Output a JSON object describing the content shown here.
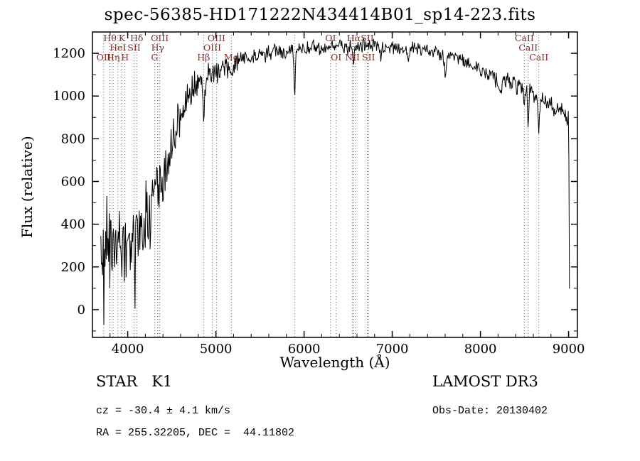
{
  "chart_data": {
    "type": "line",
    "title": "spec-56385-HD171222N434414B01_sp14-223.fits",
    "xlabel": "Wavelength (Å)",
    "ylabel": "Flux (relative)",
    "xlim": [
      3600,
      9100
    ],
    "ylim": [
      -130,
      1300
    ],
    "xticks": [
      4000,
      5000,
      6000,
      7000,
      8000,
      9000
    ],
    "yticks": [
      0,
      200,
      400,
      600,
      800,
      1000,
      1200
    ],
    "x_minor_step": 200,
    "y_minor_step": 100,
    "grid": false,
    "line_color": "#000000",
    "marker_line_color": "#9a4a44",
    "marker_label_color": "#7e2b26",
    "spectrum_anchors": [
      [
        3695,
        300
      ],
      [
        3710,
        200
      ],
      [
        3730,
        330
      ],
      [
        3750,
        260
      ],
      [
        3770,
        340
      ],
      [
        3790,
        280
      ],
      [
        3810,
        330
      ],
      [
        3830,
        260
      ],
      [
        3850,
        310
      ],
      [
        3870,
        280
      ],
      [
        3890,
        330
      ],
      [
        3910,
        300
      ],
      [
        3930,
        260
      ],
      [
        3950,
        330
      ],
      [
        3970,
        290
      ],
      [
        4000,
        340
      ],
      [
        4030,
        300
      ],
      [
        4060,
        350
      ],
      [
        4100,
        380
      ],
      [
        4150,
        360
      ],
      [
        4200,
        430
      ],
      [
        4250,
        480
      ],
      [
        4290,
        560
      ],
      [
        4320,
        660
      ],
      [
        4350,
        600
      ],
      [
        4380,
        580
      ],
      [
        4420,
        620
      ],
      [
        4460,
        700
      ],
      [
        4500,
        780
      ],
      [
        4550,
        850
      ],
      [
        4600,
        900
      ],
      [
        4650,
        950
      ],
      [
        4700,
        1000
      ],
      [
        4750,
        1040
      ],
      [
        4800,
        1060
      ],
      [
        4860,
        1030
      ],
      [
        4900,
        1090
      ],
      [
        4950,
        1100
      ],
      [
        5000,
        1110
      ],
      [
        5050,
        1130
      ],
      [
        5100,
        1140
      ],
      [
        5200,
        1150
      ],
      [
        5300,
        1170
      ],
      [
        5400,
        1180
      ],
      [
        5500,
        1190
      ],
      [
        5600,
        1200
      ],
      [
        5700,
        1210
      ],
      [
        5800,
        1200
      ],
      [
        5900,
        1210
      ],
      [
        6000,
        1220
      ],
      [
        6100,
        1230
      ],
      [
        6200,
        1220
      ],
      [
        6300,
        1230
      ],
      [
        6400,
        1235
      ],
      [
        6500,
        1230
      ],
      [
        6600,
        1230
      ],
      [
        6700,
        1235
      ],
      [
        6800,
        1240
      ],
      [
        6900,
        1225
      ],
      [
        7000,
        1230
      ],
      [
        7100,
        1215
      ],
      [
        7200,
        1225
      ],
      [
        7300,
        1220
      ],
      [
        7400,
        1215
      ],
      [
        7500,
        1200
      ],
      [
        7600,
        1185
      ],
      [
        7700,
        1180
      ],
      [
        7800,
        1160
      ],
      [
        7900,
        1140
      ],
      [
        8000,
        1120
      ],
      [
        8100,
        1100
      ],
      [
        8200,
        1070
      ],
      [
        8300,
        1075
      ],
      [
        8400,
        1060
      ],
      [
        8500,
        1040
      ],
      [
        8600,
        1010
      ],
      [
        8700,
        970
      ],
      [
        8800,
        955
      ],
      [
        8900,
        935
      ],
      [
        8960,
        910
      ],
      [
        9000,
        890
      ],
      [
        9005,
        600
      ],
      [
        9010,
        80
      ]
    ],
    "absorption_dips": [
      [
        4861,
        110,
        14
      ],
      [
        5172,
        80,
        25
      ],
      [
        5893,
        180,
        11
      ],
      [
        6495,
        40,
        8
      ],
      [
        6563,
        80,
        10
      ],
      [
        6870,
        50,
        14
      ],
      [
        7180,
        35,
        14
      ],
      [
        7600,
        70,
        18
      ],
      [
        8230,
        70,
        18
      ],
      [
        8498,
        110,
        9
      ],
      [
        8542,
        190,
        9
      ],
      [
        8662,
        130,
        9
      ]
    ],
    "noise": {
      "seed": 20130402,
      "points": 780,
      "amp_anchors": [
        [
          3695,
          150
        ],
        [
          3900,
          140
        ],
        [
          4100,
          120
        ],
        [
          4300,
          100
        ],
        [
          4500,
          70
        ],
        [
          4700,
          55
        ],
        [
          4900,
          45
        ],
        [
          5100,
          40
        ],
        [
          5400,
          32
        ],
        [
          5800,
          28
        ],
        [
          6200,
          24
        ],
        [
          6800,
          22
        ],
        [
          7400,
          24
        ],
        [
          7800,
          26
        ],
        [
          8200,
          30
        ],
        [
          8600,
          34
        ],
        [
          9010,
          28
        ]
      ]
    },
    "spectral_lines": [
      {
        "wavelength": 3727,
        "label": "OII",
        "row": 3
      },
      {
        "wavelength": 3798,
        "label": "Hθ",
        "row": 1
      },
      {
        "wavelength": 3835,
        "label": "Hη",
        "row": 3
      },
      {
        "wavelength": 3889,
        "label": "HeI",
        "row": 2
      },
      {
        "wavelength": 3934,
        "label": "K",
        "row": 1
      },
      {
        "wavelength": 3969,
        "label": "H",
        "row": 3
      },
      {
        "wavelength": 4072,
        "label": "SII",
        "row": 2
      },
      {
        "wavelength": 4102,
        "label": "Hδ",
        "row": 1
      },
      {
        "wavelength": 4305,
        "label": "G",
        "row": 3
      },
      {
        "wavelength": 4340,
        "label": "Hγ",
        "row": 2
      },
      {
        "wavelength": 4363,
        "label": "OIII",
        "row": 1
      },
      {
        "wavelength": 4861,
        "label": "Hβ",
        "row": 3
      },
      {
        "wavelength": 4959,
        "label": "OIII",
        "row": 2
      },
      {
        "wavelength": 5007,
        "label": "OIII",
        "row": 1
      },
      {
        "wavelength": 5175,
        "label": "Mg",
        "row": 3
      },
      {
        "wavelength": 5893,
        "label": "",
        "row": 3
      },
      {
        "wavelength": 6300,
        "label": "OI",
        "row": 1
      },
      {
        "wavelength": 6364,
        "label": "OI",
        "row": 3
      },
      {
        "wavelength": 6548,
        "label": "NII",
        "row": 3
      },
      {
        "wavelength": 6563,
        "label": "Hα",
        "row": 1
      },
      {
        "wavelength": 6583,
        "label": "",
        "row": 3
      },
      {
        "wavelength": 6717,
        "label": "SII",
        "row": 1
      },
      {
        "wavelength": 6731,
        "label": "SII",
        "row": 3
      },
      {
        "wavelength": 8498,
        "label": "CaII",
        "row": 1
      },
      {
        "wavelength": 8542,
        "label": "CaII",
        "row": 2
      },
      {
        "wavelength": 8662,
        "label": "CaII",
        "row": 3
      }
    ]
  },
  "footer": {
    "object_class": "STAR   K1",
    "survey": "LAMOST DR3",
    "cz": "cz = -30.4 ± 4.1 km/s",
    "obs_date": "Obs-Date: 20130402",
    "ra_dec": "RA = 255.32205, DEC =  44.11802"
  }
}
